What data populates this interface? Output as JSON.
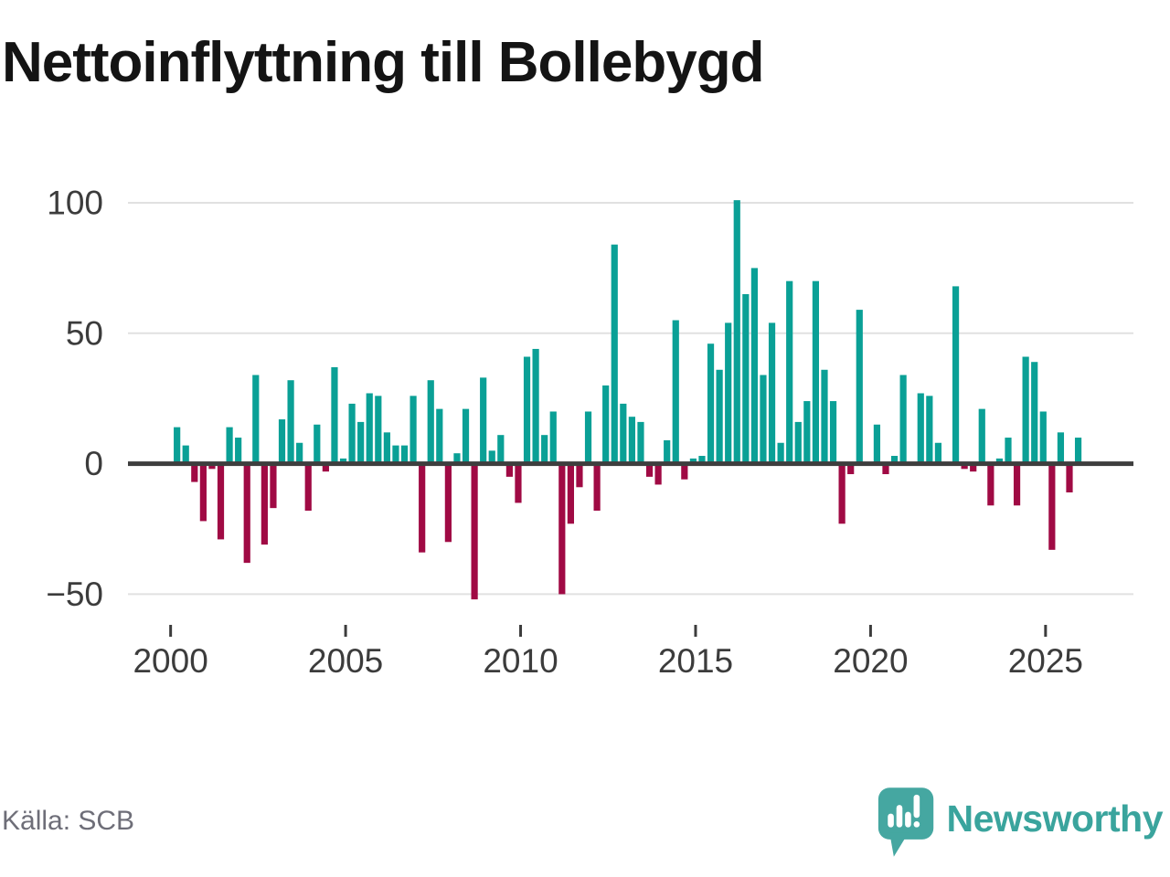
{
  "title": "Nettoinflyttning till Bollebygd",
  "footer": {
    "source": "Källa: SCB"
  },
  "brand": {
    "name": "Newsworthy"
  },
  "colors": {
    "positive": "#0aa096",
    "negative": "#a00a44",
    "axis": "#3e3e3e",
    "grid": "#e1e1e1",
    "tick_label": "#3c3c3c",
    "title_text": "#141414",
    "source_text": "#6e6e78",
    "brand": "#3aa49d"
  },
  "chart_data": {
    "type": "bar",
    "title": "Nettoinflyttning till Bollebygd",
    "frequency": "quarterly",
    "start_year": 2000,
    "end_year": 2025,
    "grid": "horizontal",
    "legend": "none",
    "x_tick_labels": [
      "2000",
      "2005",
      "2010",
      "2015",
      "2020",
      "2025"
    ],
    "y_ticks": [
      100,
      50,
      0,
      -50
    ],
    "y_tick_labels": [
      "100",
      "50",
      "0",
      "−50"
    ],
    "ylim": [
      -55,
      105
    ],
    "series": [
      {
        "name": "Nettoinflyttning",
        "values": [
          14,
          7,
          -7,
          -22,
          -2,
          -29,
          14,
          10,
          -38,
          34,
          -31,
          -17,
          17,
          32,
          8,
          -18,
          15,
          -3,
          37,
          2,
          23,
          16,
          27,
          26,
          12,
          7,
          7,
          26,
          -34,
          32,
          21,
          -30,
          4,
          21,
          -52,
          33,
          5,
          11,
          -5,
          -15,
          41,
          44,
          11,
          20,
          -50,
          -23,
          -9,
          20,
          -18,
          30,
          84,
          23,
          18,
          16,
          -5,
          -8,
          9,
          55,
          -6,
          2,
          3,
          46,
          36,
          54,
          101,
          65,
          75,
          34,
          54,
          8,
          70,
          16,
          24,
          70,
          36,
          24,
          -23,
          -4,
          59,
          0,
          15,
          -4,
          3,
          34,
          0,
          27,
          26,
          8,
          0,
          68,
          -2,
          -3,
          21,
          -16,
          2,
          10,
          -16,
          41,
          39,
          20,
          -33,
          12,
          -11,
          10
        ]
      }
    ]
  }
}
